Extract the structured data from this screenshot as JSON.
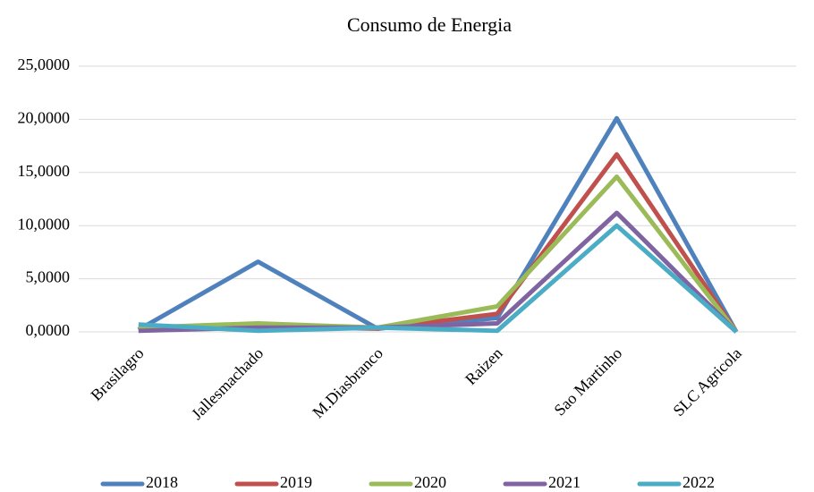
{
  "chart_data": {
    "type": "line",
    "title": "Consumo de Energia",
    "categories": [
      "Brasilagro",
      "Jallesmachado",
      "M.Diasbranco",
      "Raizen",
      "Sao Martinho",
      "SLC Agricola"
    ],
    "series": [
      {
        "name": "2018",
        "color": "#4f81bd",
        "values": [
          0.2,
          6.6,
          0.3,
          1.3,
          20.1,
          0
        ]
      },
      {
        "name": "2019",
        "color": "#c0504d",
        "values": [
          0.3,
          0.5,
          0.3,
          1.7,
          16.7,
          0
        ]
      },
      {
        "name": "2020",
        "color": "#9bbb59",
        "values": [
          0.4,
          0.8,
          0.4,
          2.4,
          14.6,
          0
        ]
      },
      {
        "name": "2021",
        "color": "#8064a2",
        "values": [
          0.1,
          0.4,
          0.4,
          0.8,
          11.2,
          0
        ]
      },
      {
        "name": "2022",
        "color": "#4bacc6",
        "values": [
          0.7,
          0.1,
          0.4,
          0.1,
          10.0,
          0
        ]
      }
    ],
    "ylim": [
      0,
      25
    ],
    "yticks": [
      {
        "value": 0,
        "label": "0,0000"
      },
      {
        "value": 5,
        "label": "5,0000"
      },
      {
        "value": 10,
        "label": "10,0000"
      },
      {
        "value": 15,
        "label": "15,0000"
      },
      {
        "value": 20,
        "label": "20,0000"
      },
      {
        "value": 25,
        "label": "25,0000"
      }
    ],
    "grid": true,
    "legend": "bottom"
  }
}
